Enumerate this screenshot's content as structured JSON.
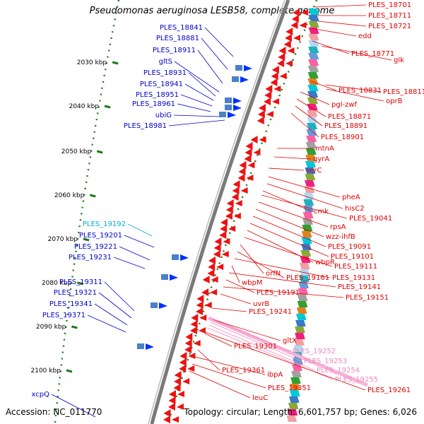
{
  "title": "Pseudomonas aeruginosa LESB58, complete genome",
  "footer": {
    "accession": "Accession: NC_011770",
    "summary": "Topology: circular; Length: 6,601,757 bp; Genes: 6,026"
  },
  "colors": {
    "backbone": "#7a7a7a",
    "tick": "#1a7a1a",
    "red_label": "#e00000",
    "blue_label": "#0000cc",
    "cyan_label": "#00b0d0",
    "pink_label": "#ee88bb"
  },
  "scale_ticks": [
    "2030 kbp",
    "2040 kbp",
    "2050 kbp",
    "2060 kbp",
    "2070 kbp",
    "2080 kbp",
    "2090 kbp",
    "2100 kbp"
  ],
  "labels_left": [
    {
      "text": "PLES_18841",
      "color": "blue"
    },
    {
      "text": "PLES_18881",
      "color": "blue"
    },
    {
      "text": "PLES_18911",
      "color": "blue"
    },
    {
      "text": "gltS",
      "color": "blue"
    },
    {
      "text": "PLES_18931",
      "color": "blue"
    },
    {
      "text": "PLES_18941",
      "color": "blue"
    },
    {
      "text": "PLES_18951",
      "color": "blue"
    },
    {
      "text": "PLES_18961",
      "color": "blue"
    },
    {
      "text": "ubiG",
      "color": "blue"
    },
    {
      "text": "PLES_18981",
      "color": "blue"
    },
    {
      "text": "PLES_19192",
      "color": "cyan"
    },
    {
      "text": "PLES_19201",
      "color": "blue"
    },
    {
      "text": "PLES_19221",
      "color": "blue"
    },
    {
      "text": "PLES_19231",
      "color": "blue"
    },
    {
      "text": "PLES_19311",
      "color": "blue"
    },
    {
      "text": "PLES_19321",
      "color": "blue"
    },
    {
      "text": "PLES_19341",
      "color": "blue"
    },
    {
      "text": "PLES_19371",
      "color": "blue"
    },
    {
      "text": "xcpQ",
      "color": "blue"
    }
  ],
  "labels_right": [
    {
      "text": "PLES_18701",
      "color": "red"
    },
    {
      "text": "PLES_18711",
      "color": "red"
    },
    {
      "text": "PLES_18721",
      "color": "red"
    },
    {
      "text": "edd",
      "color": "red"
    },
    {
      "text": "PLES_18771",
      "color": "red"
    },
    {
      "text": "glk",
      "color": "red"
    },
    {
      "text": "PLES_18831",
      "color": "red"
    },
    {
      "text": "PLES_18811",
      "color": "red"
    },
    {
      "text": "oprB",
      "color": "red"
    },
    {
      "text": "pgl-zwf",
      "color": "red"
    },
    {
      "text": "PLES_18871",
      "color": "red"
    },
    {
      "text": "PLES_18891",
      "color": "red"
    },
    {
      "text": "PLES_18901",
      "color": "red"
    },
    {
      "text": "mtnA",
      "color": "red"
    },
    {
      "text": "gyrA",
      "color": "red"
    },
    {
      "text": "serC",
      "color": "red"
    },
    {
      "text": "pheA",
      "color": "red"
    },
    {
      "text": "hisC2",
      "color": "red"
    },
    {
      "text": "cmk",
      "color": "red"
    },
    {
      "text": "PLES_19041",
      "color": "red"
    },
    {
      "text": "rpsA",
      "color": "red"
    },
    {
      "text": "wzz-ihfB",
      "color": "red"
    },
    {
      "text": "PLES_19091",
      "color": "red"
    },
    {
      "text": "PLES_19101",
      "color": "red"
    },
    {
      "text": "wbpR",
      "color": "red"
    },
    {
      "text": "PLES_19111",
      "color": "red"
    },
    {
      "text": "orfN",
      "color": "red"
    },
    {
      "text": "PLES_19161",
      "color": "red"
    },
    {
      "text": "PLES_19131",
      "color": "red"
    },
    {
      "text": "wbpM",
      "color": "red"
    },
    {
      "text": "PLES_19141",
      "color": "red"
    },
    {
      "text": "PLES_19191",
      "color": "red"
    },
    {
      "text": "PLES_19151",
      "color": "red"
    },
    {
      "text": "uvrB",
      "color": "red"
    },
    {
      "text": "PLES_19241",
      "color": "red"
    },
    {
      "text": "gltX",
      "color": "red"
    },
    {
      "text": "PLES_19301",
      "color": "red"
    },
    {
      "text": "PLES_19252",
      "color": "pink"
    },
    {
      "text": "PLES_19253",
      "color": "pink"
    },
    {
      "text": "PLES_19254",
      "color": "pink"
    },
    {
      "text": "PLES_19361",
      "color": "red"
    },
    {
      "text": "ibpA",
      "color": "red"
    },
    {
      "text": "PLES_19255",
      "color": "pink"
    },
    {
      "text": "PLES_19351",
      "color": "red"
    },
    {
      "text": "PLES_19261",
      "color": "red"
    },
    {
      "text": "leuC",
      "color": "red"
    }
  ]
}
